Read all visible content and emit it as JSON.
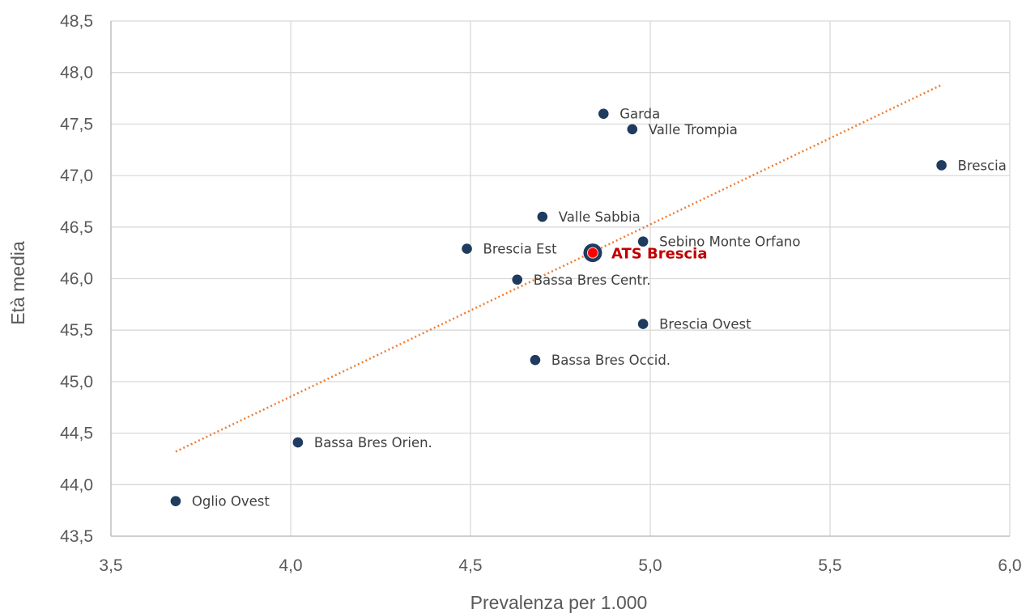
{
  "chart_data": {
    "type": "scatter",
    "xlabel": "Prevalenza per 1.000",
    "ylabel": "Età media",
    "xlim": [
      3.5,
      6.0
    ],
    "ylim": [
      43.5,
      48.5
    ],
    "xticks": [
      3.5,
      4.0,
      4.5,
      5.0,
      5.5,
      6.0
    ],
    "yticks": [
      43.5,
      44.0,
      44.5,
      45.0,
      45.5,
      46.0,
      46.5,
      47.0,
      47.5,
      48.0,
      48.5
    ],
    "x_tick_labels": [
      "3,5",
      "4,0",
      "4,5",
      "5,0",
      "5,5",
      "6,0"
    ],
    "y_tick_labels": [
      "43,5",
      "44,0",
      "44,5",
      "45,0",
      "45,5",
      "46,0",
      "46,5",
      "47,0",
      "47,5",
      "48,0",
      "48,5"
    ],
    "grid": true,
    "points": [
      {
        "label": "Garda",
        "x": 4.87,
        "y": 47.6
      },
      {
        "label": "Valle Trompia",
        "x": 4.95,
        "y": 47.45
      },
      {
        "label": "Brescia",
        "x": 5.81,
        "y": 47.1
      },
      {
        "label": "Valle Sabbia",
        "x": 4.7,
        "y": 46.6
      },
      {
        "label": "Sebino Monte Orfano",
        "x": 4.98,
        "y": 46.36
      },
      {
        "label": "Brescia Est",
        "x": 4.49,
        "y": 46.29
      },
      {
        "label": "Bassa Bres Centr.",
        "x": 4.63,
        "y": 45.99
      },
      {
        "label": "Brescia Ovest",
        "x": 4.98,
        "y": 45.56
      },
      {
        "label": "Bassa Bres Occid.",
        "x": 4.68,
        "y": 45.21
      },
      {
        "label": "Bassa Bres Orien.",
        "x": 4.02,
        "y": 44.41
      },
      {
        "label": "Oglio Ovest",
        "x": 3.68,
        "y": 43.84
      }
    ],
    "highlight": {
      "label": "ATS Brescia",
      "x": 4.84,
      "y": 46.25
    },
    "trendline": {
      "style": "dotted",
      "x": [
        3.68,
        5.81
      ],
      "y": [
        44.32,
        47.88
      ]
    },
    "colors": {
      "point": "#1f3b5f",
      "highlight_label": "#c00000",
      "highlight_dot": "#ff0000",
      "trendline": "#ed7d31",
      "grid": "#d9d9d9",
      "axis": "#bfbfbf"
    }
  }
}
